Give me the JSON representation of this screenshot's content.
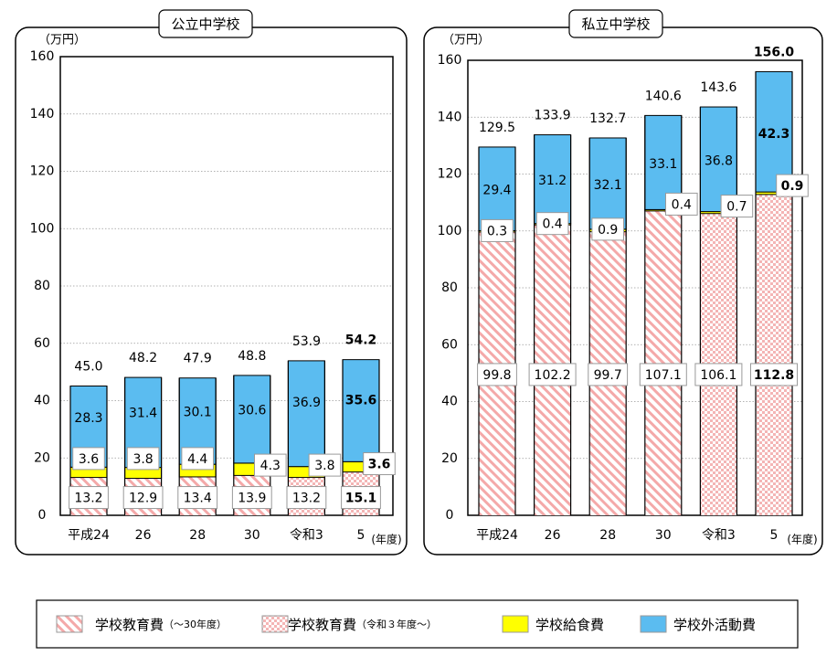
{
  "chart_data": [
    {
      "type": "bar",
      "stacked": true,
      "title": "公立中学校",
      "yunit": "（万円）",
      "xunit": "(年度)",
      "ylim": [
        0,
        160
      ],
      "yticks": [
        "0",
        "20",
        "40",
        "60",
        "80",
        "100",
        "120",
        "140",
        "160"
      ],
      "grid": true,
      "categories": [
        "平成24",
        "26",
        "28",
        "30",
        "令和3",
        "5"
      ],
      "series": [
        {
          "key": "edu",
          "values": [
            13.2,
            12.9,
            13.4,
            13.9,
            13.2,
            15.1
          ],
          "labels": [
            "13.2",
            "12.9",
            "13.4",
            "13.9",
            "13.2",
            "15.1"
          ]
        },
        {
          "key": "lunch",
          "values": [
            3.6,
            3.8,
            4.4,
            4.3,
            3.8,
            3.6
          ],
          "labels": [
            "3.6",
            "3.8",
            "4.4",
            "4.3",
            "3.8",
            "3.6"
          ]
        },
        {
          "key": "extra",
          "values": [
            28.3,
            31.4,
            30.1,
            30.6,
            36.9,
            35.6
          ],
          "labels": [
            "28.3",
            "31.4",
            "30.1",
            "30.6",
            "36.9",
            "35.6"
          ]
        }
      ],
      "totals": [
        45.0,
        48.2,
        47.9,
        48.8,
        53.9,
        54.2
      ],
      "total_labels": [
        "45.0",
        "48.2",
        "47.9",
        "48.8",
        "53.9",
        "54.2"
      ],
      "bold_last": true
    },
    {
      "type": "bar",
      "stacked": true,
      "title": "私立中学校",
      "yunit": "（万円）",
      "xunit": "(年度)",
      "ylim": [
        0,
        160
      ],
      "yticks": [
        "0",
        "20",
        "40",
        "60",
        "80",
        "100",
        "120",
        "140",
        "160"
      ],
      "grid": true,
      "categories": [
        "平成24",
        "26",
        "28",
        "30",
        "令和3",
        "5"
      ],
      "series": [
        {
          "key": "edu",
          "values": [
            99.8,
            102.2,
            99.7,
            107.1,
            106.1,
            112.8
          ],
          "labels": [
            "99.8",
            "102.2",
            "99.7",
            "107.1",
            "106.1",
            "112.8"
          ]
        },
        {
          "key": "lunch",
          "values": [
            0.3,
            0.4,
            0.9,
            0.4,
            0.7,
            0.9
          ],
          "labels": [
            "0.3",
            "0.4",
            "0.9",
            "0.4",
            "0.7",
            "0.9"
          ]
        },
        {
          "key": "extra",
          "values": [
            29.4,
            31.2,
            32.1,
            33.1,
            36.8,
            42.3
          ],
          "labels": [
            "29.4",
            "31.2",
            "32.1",
            "33.1",
            "36.8",
            "42.3"
          ]
        }
      ],
      "totals": [
        129.5,
        133.9,
        132.7,
        140.6,
        143.6,
        156.0
      ],
      "total_labels": [
        "129.5",
        "133.9",
        "132.7",
        "140.6",
        "143.6",
        "156.0"
      ],
      "bold_last": true
    }
  ],
  "legend": {
    "items": [
      {
        "key": "edu_old",
        "label": "学校教育費",
        "suffix": "（〜30年度）"
      },
      {
        "key": "edu_new",
        "label": "学校教育費",
        "suffix": "（令和３年度〜）"
      },
      {
        "key": "lunch",
        "label": "学校給食費",
        "suffix": ""
      },
      {
        "key": "extra",
        "label": "学校外活動費",
        "suffix": ""
      }
    ]
  },
  "colors": {
    "extra": "#5bbcf0",
    "lunch": "#ffff00",
    "hatch": "#f4a9a9",
    "axis": "#000000",
    "grid": "#999999"
  }
}
